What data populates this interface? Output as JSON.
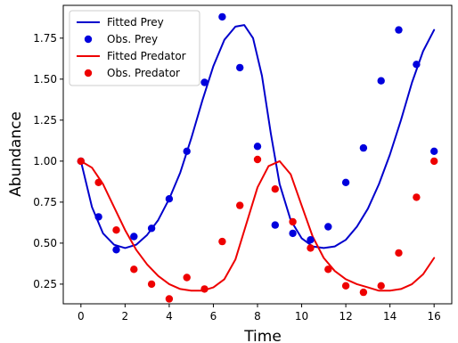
{
  "chart_data": {
    "type": "line",
    "xlabel": "Time",
    "ylabel": "Abundance",
    "xlim": [
      -0.8,
      16.8
    ],
    "ylim": [
      0.13,
      1.95
    ],
    "xticks": [
      0,
      2,
      4,
      6,
      8,
      10,
      12,
      14,
      16
    ],
    "yticks": [
      0.25,
      0.5,
      0.75,
      1.0,
      1.25,
      1.5,
      1.75
    ],
    "xtick_labels": [
      "0",
      "2",
      "4",
      "6",
      "8",
      "10",
      "12",
      "14",
      "16"
    ],
    "ytick_labels": [
      "0.25",
      "0.50",
      "0.75",
      "1.00",
      "1.25",
      "1.50",
      "1.75"
    ],
    "grid": false,
    "legend_position": "top-left",
    "series": [
      {
        "name": "Fitted Prey",
        "kind": "line",
        "color": "#0000cc",
        "x": [
          0,
          0.5,
          1.0,
          1.5,
          2.0,
          2.5,
          3.0,
          3.5,
          4.0,
          4.5,
          5.0,
          5.5,
          6.0,
          6.5,
          7.0,
          7.4,
          7.8,
          8.2,
          8.6,
          9.0,
          9.5,
          10.0,
          10.5,
          11.0,
          11.5,
          12.0,
          12.5,
          13.0,
          13.5,
          14.0,
          14.5,
          15.0,
          15.5,
          16.0
        ],
        "y": [
          1.0,
          0.72,
          0.56,
          0.49,
          0.47,
          0.49,
          0.55,
          0.64,
          0.77,
          0.93,
          1.14,
          1.37,
          1.58,
          1.74,
          1.82,
          1.83,
          1.75,
          1.52,
          1.17,
          0.86,
          0.64,
          0.53,
          0.48,
          0.47,
          0.48,
          0.52,
          0.6,
          0.71,
          0.86,
          1.04,
          1.25,
          1.48,
          1.67,
          1.8
        ]
      },
      {
        "name": "Obs. Prey",
        "kind": "scatter",
        "color": "#0000dd",
        "x": [
          0.0,
          0.8,
          1.6,
          2.4,
          3.2,
          4.0,
          4.8,
          5.6,
          6.4,
          7.2,
          8.0,
          8.8,
          9.6,
          10.4,
          11.2,
          12.0,
          12.8,
          13.6,
          14.4,
          15.2,
          16.0
        ],
        "y": [
          1.0,
          0.66,
          0.46,
          0.54,
          0.59,
          0.77,
          1.06,
          1.48,
          1.88,
          1.57,
          1.09,
          0.61,
          0.56,
          0.52,
          0.6,
          0.87,
          1.08,
          1.49,
          1.8,
          1.59,
          1.06
        ]
      },
      {
        "name": "Fitted Predator",
        "kind": "line",
        "color": "#ee0000",
        "x": [
          0,
          0.5,
          1.0,
          1.5,
          2.0,
          2.5,
          3.0,
          3.5,
          4.0,
          4.5,
          5.0,
          5.5,
          6.0,
          6.5,
          7.0,
          7.5,
          8.0,
          8.5,
          9.0,
          9.5,
          10.0,
          10.5,
          11.0,
          11.5,
          12.0,
          12.5,
          13.0,
          13.5,
          14.0,
          14.5,
          15.0,
          15.5,
          16.0
        ],
        "y": [
          1.0,
          0.96,
          0.86,
          0.72,
          0.58,
          0.46,
          0.37,
          0.3,
          0.25,
          0.22,
          0.21,
          0.21,
          0.23,
          0.28,
          0.4,
          0.62,
          0.84,
          0.97,
          1.0,
          0.92,
          0.73,
          0.54,
          0.41,
          0.33,
          0.28,
          0.25,
          0.23,
          0.21,
          0.21,
          0.22,
          0.25,
          0.31,
          0.41
        ]
      },
      {
        "name": "Obs. Predator",
        "kind": "scatter",
        "color": "#ee0000",
        "x": [
          0.0,
          0.8,
          1.6,
          2.4,
          3.2,
          4.0,
          4.8,
          5.6,
          6.4,
          7.2,
          8.0,
          8.8,
          9.6,
          10.4,
          11.2,
          12.0,
          12.8,
          13.6,
          14.4,
          15.2,
          16.0
        ],
        "y": [
          1.0,
          0.87,
          0.58,
          0.34,
          0.25,
          0.16,
          0.29,
          0.22,
          0.51,
          0.73,
          1.01,
          0.83,
          0.63,
          0.47,
          0.34,
          0.24,
          0.2,
          0.24,
          0.44,
          0.78,
          1.0
        ]
      }
    ]
  }
}
